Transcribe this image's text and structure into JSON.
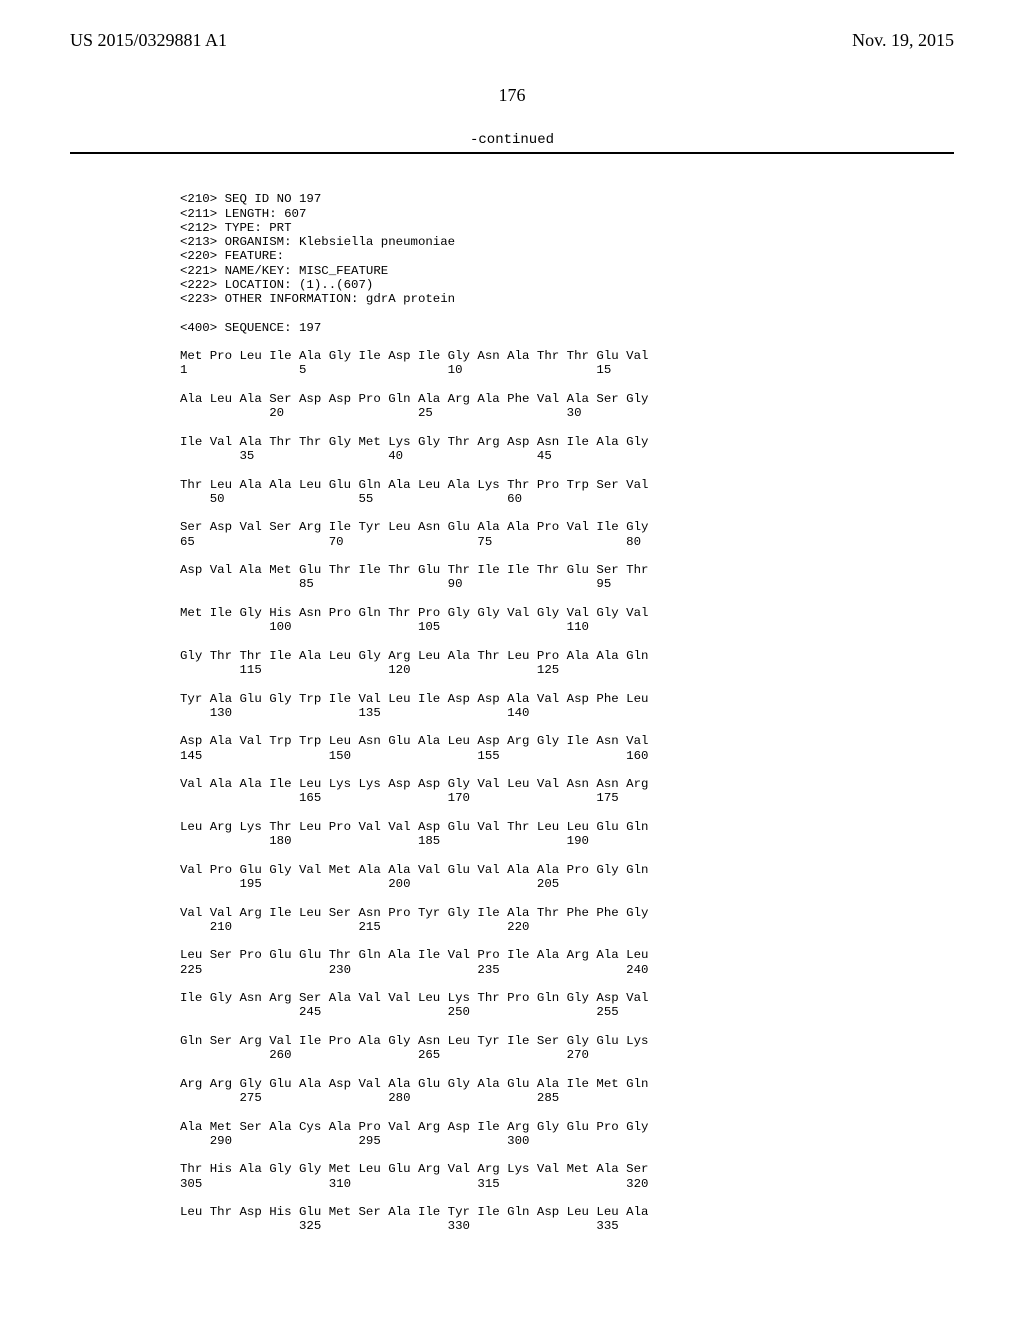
{
  "header": {
    "pub_number": "US 2015/0329881 A1",
    "pub_date": "Nov. 19, 2015",
    "page_number": "176",
    "continued_label": "-continued"
  },
  "meta_lines": [
    "<210> SEQ ID NO 197",
    "<211> LENGTH: 607",
    "<212> TYPE: PRT",
    "<213> ORGANISM: Klebsiella pneumoniae",
    "<220> FEATURE:",
    "<221> NAME/KEY: MISC_FEATURE",
    "<222> LOCATION: (1)..(607)",
    "<223> OTHER INFORMATION: gdrA protein",
    "",
    "<400> SEQUENCE: 197"
  ],
  "sequence_rows": [
    {
      "aa": "Met Pro Leu Ile Ala Gly Ile Asp Ile Gly Asn Ala Thr Thr Glu Val",
      "nums": [
        "1",
        "",
        "",
        "",
        "5",
        "",
        "",
        "",
        "",
        "10",
        "",
        "",
        "",
        "",
        "15",
        ""
      ]
    },
    {
      "aa": "Ala Leu Ala Ser Asp Asp Pro Gln Ala Arg Ala Phe Val Ala Ser Gly",
      "nums": [
        "",
        "",
        "",
        "20",
        "",
        "",
        "",
        "",
        "25",
        "",
        "",
        "",
        "",
        "30",
        "",
        ""
      ]
    },
    {
      "aa": "Ile Val Ala Thr Thr Gly Met Lys Gly Thr Arg Asp Asn Ile Ala Gly",
      "nums": [
        "",
        "",
        "35",
        "",
        "",
        "",
        "",
        "40",
        "",
        "",
        "",
        "",
        "45",
        "",
        "",
        ""
      ]
    },
    {
      "aa": "Thr Leu Ala Ala Leu Glu Gln Ala Leu Ala Lys Thr Pro Trp Ser Val",
      "nums": [
        "",
        "50",
        "",
        "",
        "",
        "",
        "55",
        "",
        "",
        "",
        "",
        "60",
        "",
        "",
        "",
        ""
      ]
    },
    {
      "aa": "Ser Asp Val Ser Arg Ile Tyr Leu Asn Glu Ala Ala Pro Val Ile Gly",
      "nums": [
        "65",
        "",
        "",
        "",
        "",
        "70",
        "",
        "",
        "",
        "",
        "75",
        "",
        "",
        "",
        "",
        "80"
      ]
    },
    {
      "aa": "Asp Val Ala Met Glu Thr Ile Thr Glu Thr Ile Ile Thr Glu Ser Thr",
      "nums": [
        "",
        "",
        "",
        "",
        "85",
        "",
        "",
        "",
        "",
        "90",
        "",
        "",
        "",
        "",
        "95",
        ""
      ]
    },
    {
      "aa": "Met Ile Gly His Asn Pro Gln Thr Pro Gly Gly Val Gly Val Gly Val",
      "nums": [
        "",
        "",
        "",
        "100",
        "",
        "",
        "",
        "",
        "105",
        "",
        "",
        "",
        "",
        "110",
        "",
        ""
      ]
    },
    {
      "aa": "Gly Thr Thr Ile Ala Leu Gly Arg Leu Ala Thr Leu Pro Ala Ala Gln",
      "nums": [
        "",
        "",
        "115",
        "",
        "",
        "",
        "",
        "120",
        "",
        "",
        "",
        "",
        "125",
        "",
        "",
        ""
      ]
    },
    {
      "aa": "Tyr Ala Glu Gly Trp Ile Val Leu Ile Asp Asp Ala Val Asp Phe Leu",
      "nums": [
        "",
        "130",
        "",
        "",
        "",
        "",
        "135",
        "",
        "",
        "",
        "",
        "140",
        "",
        "",
        "",
        ""
      ]
    },
    {
      "aa": "Asp Ala Val Trp Trp Leu Asn Glu Ala Leu Asp Arg Gly Ile Asn Val",
      "nums": [
        "145",
        "",
        "",
        "",
        "",
        "150",
        "",
        "",
        "",
        "",
        "155",
        "",
        "",
        "",
        "",
        "160"
      ]
    },
    {
      "aa": "Val Ala Ala Ile Leu Lys Lys Asp Asp Gly Val Leu Val Asn Asn Arg",
      "nums": [
        "",
        "",
        "",
        "",
        "165",
        "",
        "",
        "",
        "",
        "170",
        "",
        "",
        "",
        "",
        "175",
        ""
      ]
    },
    {
      "aa": "Leu Arg Lys Thr Leu Pro Val Val Asp Glu Val Thr Leu Leu Glu Gln",
      "nums": [
        "",
        "",
        "",
        "180",
        "",
        "",
        "",
        "",
        "185",
        "",
        "",
        "",
        "",
        "190",
        "",
        ""
      ]
    },
    {
      "aa": "Val Pro Glu Gly Val Met Ala Ala Val Glu Val Ala Ala Pro Gly Gln",
      "nums": [
        "",
        "",
        "195",
        "",
        "",
        "",
        "",
        "200",
        "",
        "",
        "",
        "",
        "205",
        "",
        "",
        ""
      ]
    },
    {
      "aa": "Val Val Arg Ile Leu Ser Asn Pro Tyr Gly Ile Ala Thr Phe Phe Gly",
      "nums": [
        "",
        "210",
        "",
        "",
        "",
        "",
        "215",
        "",
        "",
        "",
        "",
        "220",
        "",
        "",
        "",
        ""
      ]
    },
    {
      "aa": "Leu Ser Pro Glu Glu Thr Gln Ala Ile Val Pro Ile Ala Arg Ala Leu",
      "nums": [
        "225",
        "",
        "",
        "",
        "",
        "230",
        "",
        "",
        "",
        "",
        "235",
        "",
        "",
        "",
        "",
        "240"
      ]
    },
    {
      "aa": "Ile Gly Asn Arg Ser Ala Val Val Leu Lys Thr Pro Gln Gly Asp Val",
      "nums": [
        "",
        "",
        "",
        "",
        "245",
        "",
        "",
        "",
        "",
        "250",
        "",
        "",
        "",
        "",
        "255",
        ""
      ]
    },
    {
      "aa": "Gln Ser Arg Val Ile Pro Ala Gly Asn Leu Tyr Ile Ser Gly Glu Lys",
      "nums": [
        "",
        "",
        "",
        "260",
        "",
        "",
        "",
        "",
        "265",
        "",
        "",
        "",
        "",
        "270",
        "",
        ""
      ]
    },
    {
      "aa": "Arg Arg Gly Glu Ala Asp Val Ala Glu Gly Ala Glu Ala Ile Met Gln",
      "nums": [
        "",
        "",
        "275",
        "",
        "",
        "",
        "",
        "280",
        "",
        "",
        "",
        "",
        "285",
        "",
        "",
        ""
      ]
    },
    {
      "aa": "Ala Met Ser Ala Cys Ala Pro Val Arg Asp Ile Arg Gly Glu Pro Gly",
      "nums": [
        "",
        "290",
        "",
        "",
        "",
        "",
        "295",
        "",
        "",
        "",
        "",
        "300",
        "",
        "",
        "",
        ""
      ]
    },
    {
      "aa": "Thr His Ala Gly Gly Met Leu Glu Arg Val Arg Lys Val Met Ala Ser",
      "nums": [
        "305",
        "",
        "",
        "",
        "",
        "310",
        "",
        "",
        "",
        "",
        "315",
        "",
        "",
        "",
        "",
        "320"
      ]
    },
    {
      "aa": "Leu Thr Asp His Glu Met Ser Ala Ile Tyr Ile Gln Asp Leu Leu Ala",
      "nums": [
        "",
        "",
        "",
        "",
        "325",
        "",
        "",
        "",
        "",
        "330",
        "",
        "",
        "",
        "",
        "335",
        ""
      ]
    }
  ]
}
